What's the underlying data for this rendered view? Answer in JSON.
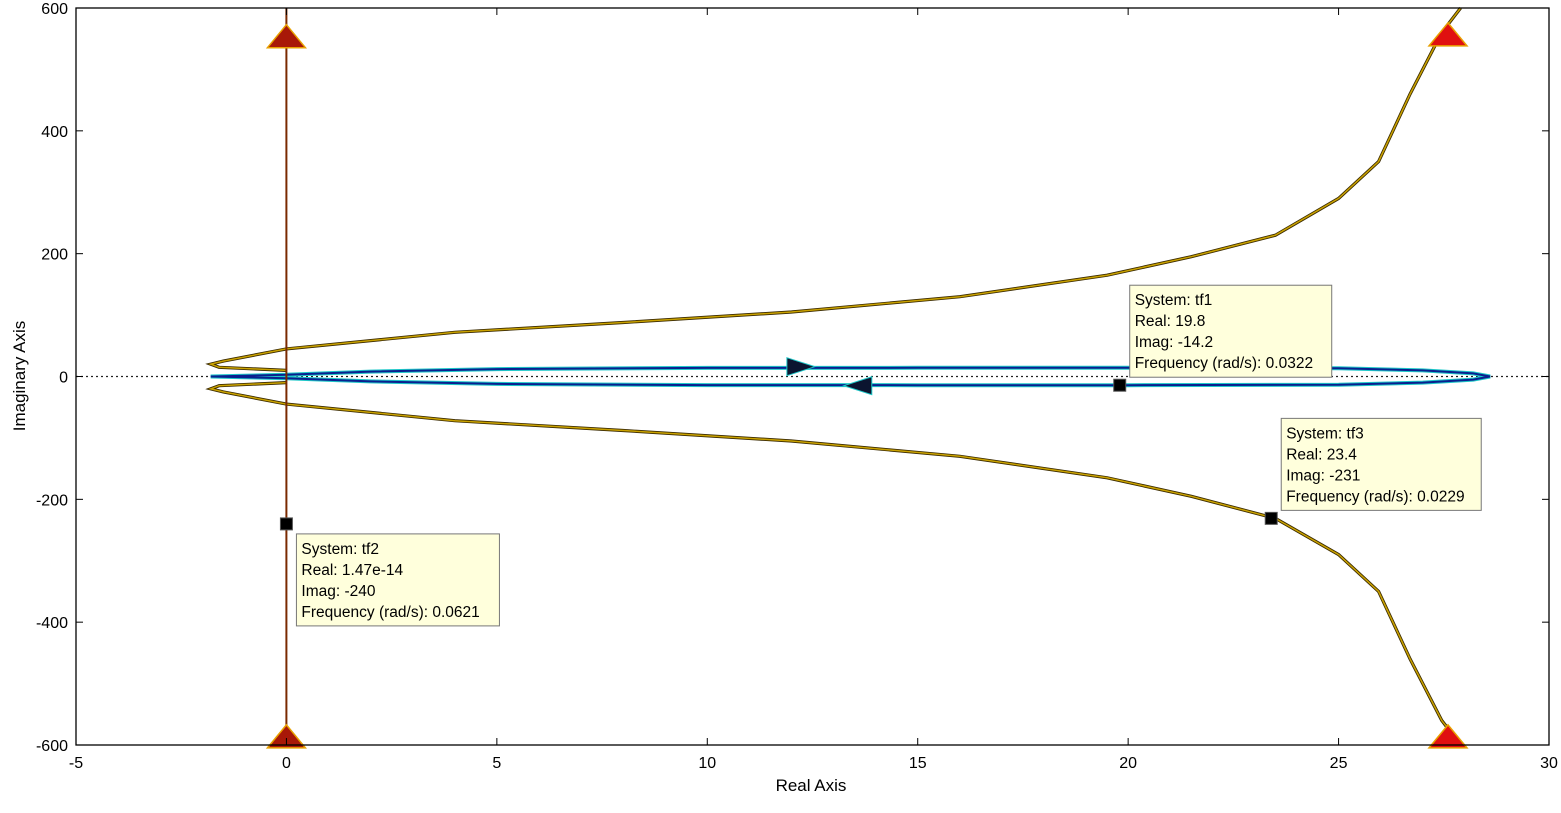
{
  "chart_data": {
    "type": "line",
    "xlabel": "Real Axis",
    "ylabel": "Imaginary Axis",
    "xlim": [
      -5,
      30
    ],
    "ylim": [
      -600,
      600
    ],
    "xticks": [
      -5,
      0,
      5,
      10,
      15,
      20,
      25,
      30
    ],
    "yticks": [
      -600,
      -400,
      -200,
      0,
      200,
      400,
      600
    ],
    "grid": false,
    "zero_line": "dotted horizontal line at Imag = 0",
    "series": [
      {
        "system": "tf1",
        "color": "#0a1f8f",
        "outline_color": "#1ec8c8",
        "points": [
          [
            0,
            3
          ],
          [
            2,
            8
          ],
          [
            5,
            12
          ],
          [
            10,
            14
          ],
          [
            15,
            14.2
          ],
          [
            20,
            14.2
          ],
          [
            25,
            13.5
          ],
          [
            27,
            10
          ],
          [
            28.2,
            5
          ],
          [
            28.6,
            0
          ],
          [
            28.2,
            -5
          ],
          [
            27,
            -10
          ],
          [
            25,
            -13.5
          ],
          [
            20,
            -14.2
          ],
          [
            15,
            -14.2
          ],
          [
            10,
            -14
          ],
          [
            5,
            -12
          ],
          [
            2,
            -8
          ],
          [
            0,
            -3
          ],
          [
            -1.8,
            0
          ],
          [
            0,
            3
          ]
        ],
        "direction_arrows": [
          [
            12.2,
            16
          ],
          [
            13.6,
            -15
          ]
        ]
      },
      {
        "system": "tf2",
        "color": "#7a2a00",
        "points": [
          [
            0,
            600
          ],
          [
            0,
            -600
          ]
        ],
        "endpoint_triangles": [
          [
            0,
            550
          ],
          [
            0,
            -590
          ]
        ]
      },
      {
        "system": "tf3",
        "color": "#caa200",
        "outline_color": "#3a2a00",
        "points_upper": [
          [
            27.9,
            600
          ],
          [
            27.45,
            560
          ],
          [
            26.7,
            460
          ],
          [
            25.95,
            350
          ],
          [
            25,
            290
          ],
          [
            23.5,
            230
          ],
          [
            21.5,
            195
          ],
          [
            19.5,
            165
          ],
          [
            16,
            130
          ],
          [
            12,
            105
          ],
          [
            8,
            88
          ],
          [
            4,
            72
          ],
          [
            0,
            45
          ],
          [
            -1.5,
            25
          ],
          [
            -1.8,
            20
          ],
          [
            -1.6,
            15
          ],
          [
            0,
            10
          ]
        ],
        "points_lower": [
          [
            27.9,
            -600
          ],
          [
            27.45,
            -560
          ],
          [
            26.7,
            -460
          ],
          [
            25.95,
            -350
          ],
          [
            25,
            -290
          ],
          [
            23.5,
            -231
          ],
          [
            21.5,
            -195
          ],
          [
            19.5,
            -165
          ],
          [
            16,
            -130
          ],
          [
            12,
            -105
          ],
          [
            8,
            -88
          ],
          [
            4,
            -72
          ],
          [
            0,
            -45
          ],
          [
            -1.5,
            -25
          ],
          [
            -1.8,
            -20
          ],
          [
            -1.6,
            -15
          ],
          [
            0,
            -10
          ]
        ],
        "endpoint_triangles": [
          [
            27.6,
            553
          ],
          [
            27.6,
            -590
          ]
        ]
      }
    ],
    "datatips": [
      {
        "system": "tf1",
        "real": 19.8,
        "imag": -14.2,
        "frequency": 0.0322,
        "label_anchor": "upper"
      },
      {
        "system": "tf2",
        "real": 1.47e-14,
        "imag": -240,
        "frequency": 0.0621,
        "label_anchor": "lower"
      },
      {
        "system": "tf3",
        "real": 23.4,
        "imag": -231,
        "frequency": 0.0229,
        "label_anchor": "upper"
      }
    ],
    "tooltips": [
      [
        "System: tf1",
        "Real: 19.8",
        "Imag: -14.2",
        "Frequency (rad/s): 0.0322"
      ],
      [
        "System: tf2",
        "Real: 1.47e-14",
        "Imag: -240",
        "Frequency (rad/s): 0.0621"
      ],
      [
        "System: tf3",
        "Real: 23.4",
        "Imag: -231",
        "Frequency (rad/s): 0.0229"
      ]
    ]
  }
}
